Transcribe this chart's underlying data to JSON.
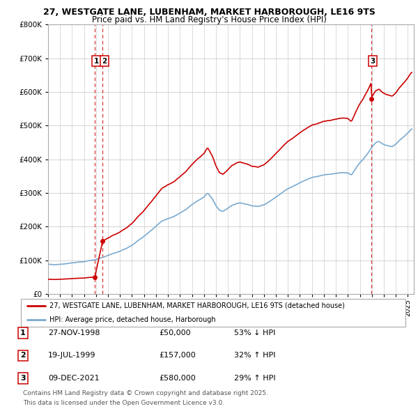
{
  "title1": "27, WESTGATE LANE, LUBENHAM, MARKET HARBOROUGH, LE16 9TS",
  "title2": "Price paid vs. HM Land Registry's House Price Index (HPI)",
  "legend_house": "27, WESTGATE LANE, LUBENHAM, MARKET HARBOROUGH, LE16 9TS (detached house)",
  "legend_hpi": "HPI: Average price, detached house, Harborough",
  "transactions": [
    {
      "num": 1,
      "date": "27-NOV-1998",
      "price": "£50,000",
      "pct": "53% ↓ HPI",
      "year": 1998.9
    },
    {
      "num": 2,
      "date": "19-JUL-1999",
      "price": "£157,000",
      "pct": "32% ↑ HPI",
      "year": 1999.55
    },
    {
      "num": 3,
      "date": "09-DEC-2021",
      "price": "£580,000",
      "pct": "29% ↑ HPI",
      "year": 2021.93
    }
  ],
  "footnote1": "Contains HM Land Registry data © Crown copyright and database right 2025.",
  "footnote2": "This data is licensed under the Open Government Licence v3.0.",
  "house_color": "#cc0000",
  "hpi_color": "#7aaad0",
  "vline_color": "#cc0000",
  "background_color": "#ffffff",
  "grid_color": "#cccccc",
  "ylim": [
    0,
    800000
  ],
  "xlim_start": 1995,
  "xlim_end": 2025.5,
  "sale_years": [
    1998.9,
    1999.55,
    2021.93
  ],
  "sale_prices": [
    50000,
    157000,
    580000
  ]
}
